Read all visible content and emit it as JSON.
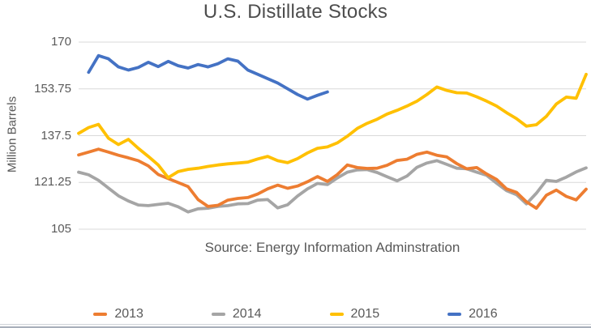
{
  "title": "U.S. Distillate Stocks",
  "source_note": "Source: Energy Information Adminstration",
  "y_axis": {
    "label": "Million Barrels",
    "ticks": [
      "170",
      "153.75",
      "137.5",
      "121.25",
      "105"
    ]
  },
  "colors": {
    "series_2013": "#ED7D31",
    "series_2014": "#A5A5A5",
    "series_2015": "#FFC000",
    "series_2016": "#4472C4",
    "gridline": "#D9D9D9",
    "text": "#595959",
    "title_text": "#4d4d4d"
  },
  "legend": {
    "position": "bottom",
    "items": [
      {
        "label": "2013",
        "color": "#ED7D31"
      },
      {
        "label": "2014",
        "color": "#A5A5A5"
      },
      {
        "label": "2015",
        "color": "#FFC000"
      },
      {
        "label": "2016",
        "color": "#4472C4"
      }
    ]
  },
  "chart_data": {
    "type": "line",
    "title": "U.S. Distillate Stocks",
    "xlabel": "",
    "ylabel": "Million Barrels",
    "x_unit": "week of year (no x tick labels shown)",
    "x_range": [
      0,
      51
    ],
    "ylim": [
      105,
      170
    ],
    "yticks": [
      105,
      121.25,
      137.5,
      153.75,
      170
    ],
    "grid": "horizontal",
    "legend_position": "bottom",
    "draw_order": [
      "2014",
      "2013",
      "2015",
      "2016"
    ],
    "series": [
      {
        "name": "2013",
        "color": "#ED7D31",
        "start_week": 0,
        "values": [
          130.8,
          131.8,
          132.8,
          131.8,
          130.7,
          129.8,
          128.8,
          127.0,
          124.0,
          122.6,
          121.2,
          119.8,
          115.3,
          112.9,
          113.3,
          115.1,
          115.7,
          116.0,
          117.2,
          119.0,
          120.3,
          119.2,
          120.0,
          121.5,
          123.3,
          121.6,
          124.0,
          127.3,
          126.4,
          126.1,
          126.2,
          127.2,
          128.9,
          129.3,
          131.0,
          131.8,
          130.7,
          130.1,
          127.8,
          126.0,
          126.4,
          124.2,
          122.3,
          119.0,
          117.8,
          114.5,
          112.3,
          116.8,
          118.6,
          116.4,
          115.2,
          118.9
        ]
      },
      {
        "name": "2014",
        "color": "#A5A5A5",
        "start_week": 0,
        "values": [
          124.8,
          123.9,
          122.0,
          119.3,
          116.6,
          114.8,
          113.4,
          113.2,
          113.6,
          114.0,
          112.8,
          111.0,
          112.1,
          112.3,
          112.9,
          113.2,
          113.8,
          113.9,
          115.1,
          115.3,
          112.4,
          113.5,
          116.5,
          119.0,
          120.9,
          120.5,
          122.8,
          124.8,
          125.6,
          125.7,
          124.7,
          123.2,
          121.8,
          123.5,
          126.5,
          128.0,
          128.8,
          127.5,
          126.2,
          126.0,
          124.8,
          123.7,
          121.0,
          118.4,
          117.0,
          113.8,
          117.5,
          122.0,
          121.6,
          123.1,
          124.9,
          126.3
        ]
      },
      {
        "name": "2015",
        "color": "#FFC000",
        "start_week": 0,
        "values": [
          138.3,
          140.3,
          141.4,
          136.6,
          134.4,
          136.2,
          133.1,
          130.3,
          127.3,
          122.9,
          125.0,
          125.8,
          126.2,
          126.8,
          127.3,
          127.7,
          128.0,
          128.3,
          129.4,
          130.3,
          128.8,
          128.1,
          129.5,
          131.5,
          133.1,
          133.6,
          135.0,
          137.3,
          140.0,
          141.8,
          143.2,
          145.0,
          146.3,
          147.8,
          149.5,
          151.8,
          154.4,
          153.2,
          152.4,
          152.3,
          151.0,
          149.5,
          147.8,
          145.5,
          143.4,
          140.8,
          141.3,
          144.2,
          148.5,
          150.9,
          150.5,
          158.8
        ]
      },
      {
        "name": "2016",
        "color": "#4472C4",
        "start_week": 1,
        "values": [
          159.5,
          165.3,
          164.2,
          161.4,
          160.3,
          161.2,
          163.0,
          161.5,
          163.3,
          161.8,
          161.0,
          162.2,
          161.4,
          162.5,
          164.2,
          163.4,
          160.3,
          158.8,
          157.3,
          155.8,
          153.8,
          151.8,
          150.2,
          151.5,
          152.7
        ]
      }
    ]
  }
}
